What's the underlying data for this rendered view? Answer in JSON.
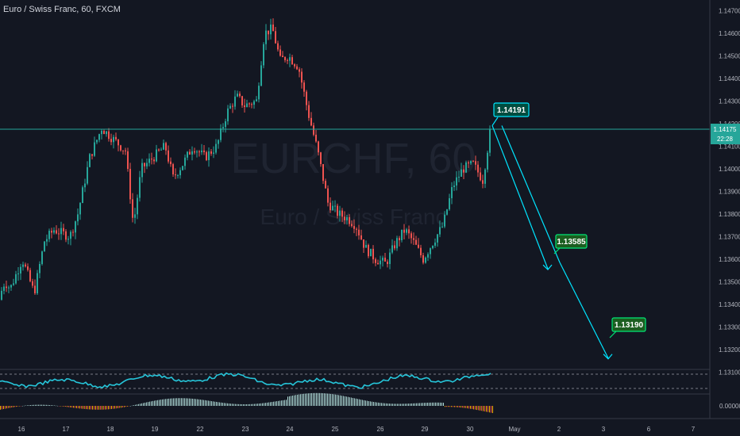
{
  "header": {
    "symbol_title": "Euro / Swiss Franc, 60, FXCM"
  },
  "watermark": {
    "ticker": "EURCHF, 60",
    "name": "Euro / Swiss Franc"
  },
  "price_axis": {
    "ticks": [
      "1.14700",
      "1.14600",
      "1.14500",
      "1.14400",
      "1.14300",
      "1.14200",
      "1.14100",
      "1.14000",
      "1.13900",
      "1.13800",
      "1.13700",
      "1.13600",
      "1.13500",
      "1.13400",
      "1.13300",
      "1.13200",
      "1.13100"
    ],
    "last_price": "1.14175",
    "countdown": "22:28",
    "osc_zero": "0.00000"
  },
  "time_axis": {
    "labels": [
      "16",
      "17",
      "18",
      "19",
      "22",
      "23",
      "24",
      "25",
      "26",
      "29",
      "30",
      "May",
      "2",
      "3",
      "6",
      "7"
    ]
  },
  "annotations": [
    {
      "label": "1.14191",
      "price": 1.14191
    },
    {
      "label": "1.13585",
      "price": 1.13585
    },
    {
      "label": "1.13190",
      "price": 1.1319
    }
  ],
  "colors": {
    "up": "#26a69a",
    "down": "#ef5350",
    "bg": "#131722",
    "cyan": "#00e5ff",
    "green_box": "#1b5e20",
    "hist_up": "#b2dfdb"
  },
  "chart_data": {
    "type": "candlestick",
    "symbol": "EURCHF",
    "timeframe": "60",
    "path": [
      [
        0,
        1.1342
      ],
      [
        8,
        1.135
      ],
      [
        15,
        1.1347
      ],
      [
        30,
        1.136
      ],
      [
        45,
        1.1345
      ],
      [
        58,
        1.1368
      ],
      [
        70,
        1.1373
      ],
      [
        90,
        1.137
      ],
      [
        100,
        1.138
      ],
      [
        115,
        1.1405
      ],
      [
        130,
        1.1418
      ],
      [
        145,
        1.1413
      ],
      [
        160,
        1.1408
      ],
      [
        170,
        1.1375
      ],
      [
        180,
        1.14
      ],
      [
        195,
        1.1405
      ],
      [
        210,
        1.141
      ],
      [
        220,
        1.1396
      ],
      [
        232,
        1.1402
      ],
      [
        245,
        1.141
      ],
      [
        260,
        1.1405
      ],
      [
        275,
        1.141
      ],
      [
        288,
        1.1425
      ],
      [
        300,
        1.1432
      ],
      [
        310,
        1.1428
      ],
      [
        325,
        1.143
      ],
      [
        335,
        1.146
      ],
      [
        345,
        1.1462
      ],
      [
        355,
        1.1448
      ],
      [
        365,
        1.145
      ],
      [
        378,
        1.1445
      ],
      [
        390,
        1.1425
      ],
      [
        402,
        1.1408
      ],
      [
        415,
        1.1385
      ],
      [
        428,
        1.138
      ],
      [
        440,
        1.1378
      ],
      [
        450,
        1.1375
      ],
      [
        462,
        1.1365
      ],
      [
        475,
        1.136
      ],
      [
        488,
        1.1358
      ],
      [
        500,
        1.1367
      ],
      [
        512,
        1.1373
      ],
      [
        522,
        1.1368
      ],
      [
        535,
        1.136
      ],
      [
        548,
        1.1368
      ],
      [
        560,
        1.1375
      ],
      [
        572,
        1.1392
      ],
      [
        585,
        1.14
      ],
      [
        598,
        1.1402
      ],
      [
        610,
        1.1395
      ],
      [
        620,
        1.1418
      ]
    ],
    "price_range": [
      1.1305,
      1.1478
    ],
    "last_price": 1.14175,
    "projection_arrows": [
      {
        "from": 1.14191,
        "to": 1.13585
      },
      {
        "from": 1.14191,
        "to": 1.1319
      }
    ],
    "grid": false
  }
}
